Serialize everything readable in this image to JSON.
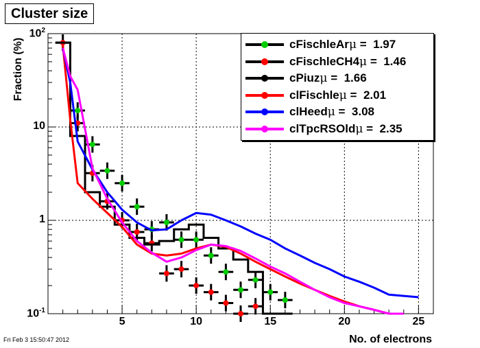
{
  "chart_data": {
    "type": "line",
    "title": "Cluster size",
    "xlabel": "No. of electrons",
    "ylabel": "Fraction (%)",
    "xlim": [
      0,
      26
    ],
    "ylim": [
      0.1,
      100
    ],
    "log_y": true,
    "grid": true,
    "legend_position": "top-right",
    "x_ticks": [
      5,
      10,
      15,
      20,
      25
    ],
    "x_tick_labels": [
      "5",
      "10",
      "15",
      "20",
      "25"
    ],
    "y_ticks": [
      {
        "value": 100,
        "base": "10",
        "exp": "2"
      },
      {
        "value": 10,
        "base": "10",
        "exp": ""
      },
      {
        "value": 1,
        "base": "1",
        "exp": ""
      },
      {
        "value": 0.1,
        "base": "10",
        "exp": "-1"
      }
    ],
    "series": [
      {
        "name": "cFischleAr",
        "stat": "1.97",
        "color": "#000000",
        "marker": "#00cc00",
        "style": "points",
        "x": [
          1,
          2,
          3,
          4,
          5,
          6,
          7,
          8,
          9,
          10,
          11,
          12,
          13,
          14,
          15,
          16
        ],
        "y": [
          80,
          15,
          6.5,
          3.4,
          2.5,
          1.4,
          0.8,
          0.95,
          0.62,
          0.62,
          0.42,
          0.28,
          0.18,
          0.23,
          0.17,
          0.14
        ]
      },
      {
        "name": "cFischleCH4",
        "stat": "1.46",
        "color": "#000000",
        "marker": "#ff0000",
        "style": "points",
        "x": [
          1,
          2,
          3,
          4,
          5,
          6,
          7,
          8,
          9,
          10,
          11,
          12,
          13,
          14
        ],
        "y": [
          80,
          11,
          3.2,
          1.6,
          1.0,
          0.75,
          0.57,
          0.27,
          0.3,
          0.2,
          0.17,
          0.13,
          0.1,
          0.12
        ]
      },
      {
        "name": "cPiuz",
        "stat": "1.66",
        "color": "#000000",
        "style": "step",
        "x": [
          1,
          2,
          3,
          4,
          5,
          6,
          7,
          8,
          9,
          10,
          11,
          12,
          13,
          14,
          15,
          16
        ],
        "y": [
          80,
          8,
          2,
          1.4,
          0.9,
          0.65,
          0.55,
          0.6,
          0.8,
          0.9,
          0.65,
          0.5,
          0.38,
          0.28,
          0.1,
          0.1
        ]
      },
      {
        "name": "clFischle",
        "stat": "2.01",
        "color": "#ff0000",
        "style": "line",
        "x": [
          1,
          1.5,
          2,
          3,
          4,
          5,
          6,
          7,
          8,
          9,
          10,
          11,
          12,
          13,
          14,
          15,
          16,
          17,
          18,
          19,
          20,
          21,
          22,
          23,
          24
        ],
        "y": [
          75,
          12,
          2.5,
          1.7,
          1.2,
          0.85,
          0.55,
          0.44,
          0.42,
          0.44,
          0.5,
          0.55,
          0.52,
          0.44,
          0.36,
          0.3,
          0.25,
          0.21,
          0.18,
          0.155,
          0.135,
          0.12,
          0.11,
          0.1,
          0.1
        ]
      },
      {
        "name": "clHeed",
        "stat": "3.08",
        "color": "#0000ff",
        "style": "line",
        "x": [
          1,
          1.5,
          2,
          3,
          4,
          5,
          6,
          7,
          8,
          9,
          10,
          11,
          12,
          13,
          14,
          15,
          16,
          17,
          18,
          19,
          20,
          21,
          22,
          23,
          24,
          25
        ],
        "y": [
          70,
          30,
          7,
          3.5,
          2.0,
          1.3,
          0.95,
          0.78,
          0.8,
          1.0,
          1.2,
          1.15,
          1.0,
          0.86,
          0.72,
          0.62,
          0.5,
          0.42,
          0.35,
          0.3,
          0.25,
          0.22,
          0.19,
          0.16,
          0.155,
          0.15
        ]
      },
      {
        "name": "clTpcRSOld",
        "stat": "2.35",
        "color": "#ff00ff",
        "style": "line",
        "x": [
          1,
          1.5,
          2,
          3,
          4,
          5,
          6,
          7,
          8,
          9,
          10,
          11,
          12,
          13,
          14,
          15,
          16,
          17,
          18,
          19,
          20,
          21,
          22,
          23,
          24
        ],
        "y": [
          70,
          35,
          25,
          3.6,
          1.7,
          0.95,
          0.6,
          0.45,
          0.36,
          0.4,
          0.48,
          0.55,
          0.53,
          0.47,
          0.39,
          0.32,
          0.27,
          0.22,
          0.18,
          0.15,
          0.13,
          0.12,
          0.11,
          0.1,
          0.1
        ]
      }
    ]
  },
  "timestamp": "Fri Feb  3 15:50:47 2012",
  "mu_symbol": "μ",
  "stat_separator": " =  "
}
